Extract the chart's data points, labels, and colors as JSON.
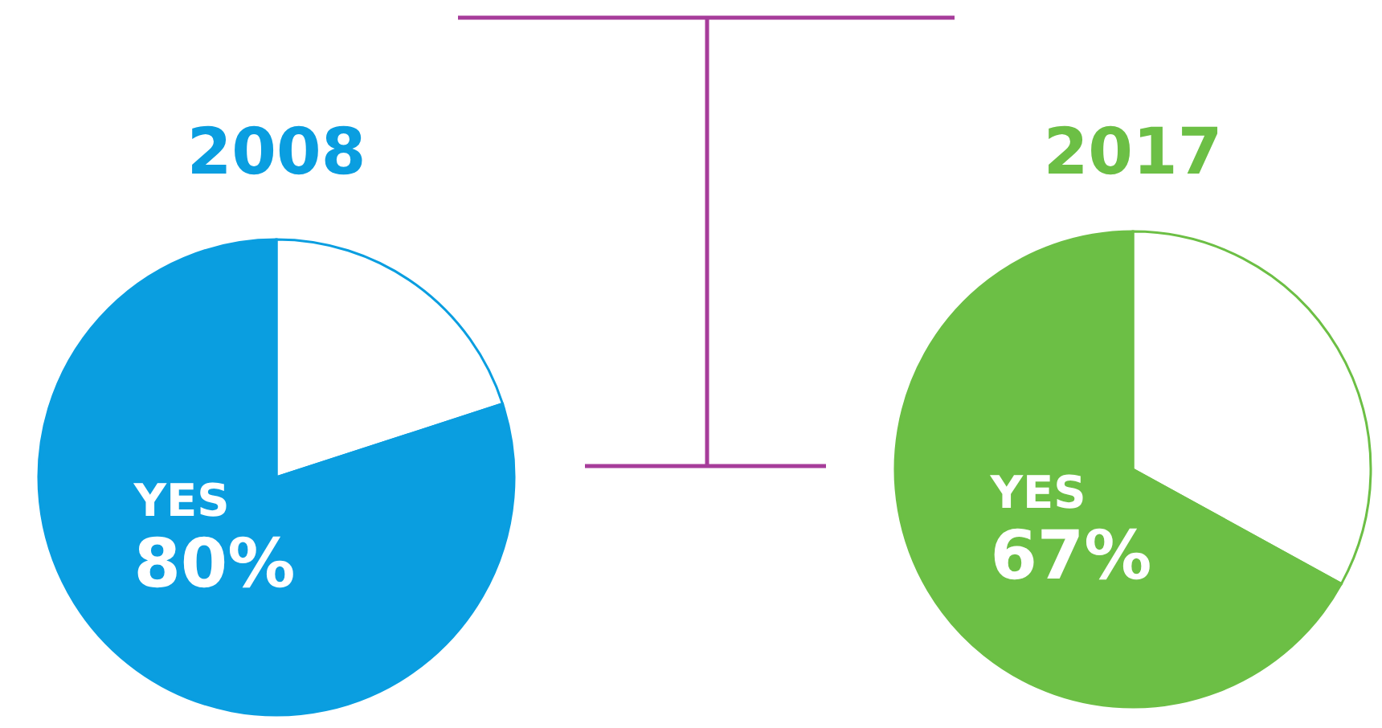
{
  "chart_data": [
    {
      "type": "pie",
      "title": "2008",
      "categories": [
        null,
        "YES"
      ],
      "values": [
        20,
        80
      ],
      "colors": [
        "#ffffff",
        "#0a9ee0"
      ],
      "value_labels": [
        null,
        "80%"
      ]
    },
    {
      "type": "pie",
      "title": "2017",
      "categories": [
        null,
        "YES"
      ],
      "values": [
        33,
        67
      ],
      "colors": [
        "#ffffff",
        "#6cbf45"
      ],
      "value_labels": [
        null,
        "67%"
      ]
    }
  ]
}
